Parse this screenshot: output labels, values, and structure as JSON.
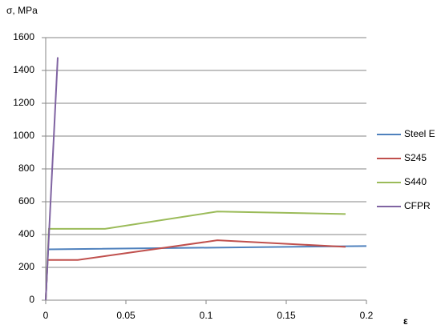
{
  "chart_data": {
    "type": "line",
    "y_label": "σ, MPa",
    "x_label": "ε",
    "xlim": [
      0,
      0.2
    ],
    "xticks": [
      0,
      0.05,
      0.1,
      0.15,
      0.2
    ],
    "ylim": [
      0,
      1600
    ],
    "yticks": [
      0,
      200,
      400,
      600,
      800,
      1000,
      1200,
      1400,
      1600
    ],
    "grid": true,
    "legend": "right",
    "series": [
      {
        "name": "Steel E",
        "color": "#4f81bd",
        "x": [
          0,
          0.0015,
          0.2
        ],
        "values": [
          0,
          310,
          330
        ]
      },
      {
        "name": "S245",
        "color": "#c0504d",
        "x": [
          0,
          0.0012,
          0.02,
          0.107,
          0.187
        ],
        "values": [
          0,
          245,
          245,
          365,
          325
        ]
      },
      {
        "name": "S440",
        "color": "#9bbb59",
        "x": [
          0,
          0.002,
          0.037,
          0.107,
          0.187
        ],
        "values": [
          0,
          435,
          435,
          540,
          525
        ]
      },
      {
        "name": "CFPR",
        "color": "#8064a2",
        "x": [
          0,
          0.0075
        ],
        "values": [
          0,
          1480
        ]
      }
    ]
  }
}
